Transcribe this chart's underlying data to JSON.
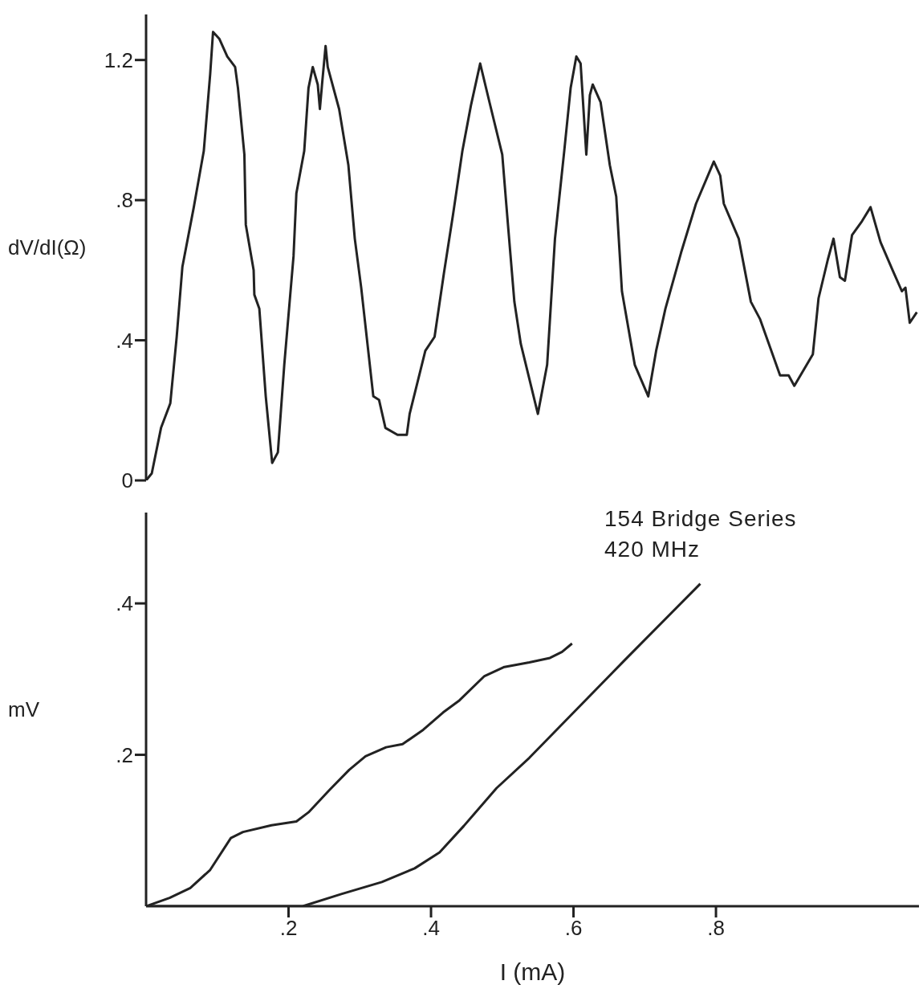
{
  "chart_data": [
    {
      "type": "line",
      "ylabel": "dV/dI(Ω)",
      "xlim": [
        0,
        1.085
      ],
      "ylim": [
        0,
        1.33
      ],
      "yticks": [
        0,
        {
          "value": 0.4,
          "label": ".4"
        },
        {
          "value": 0.8,
          "label": ".8"
        },
        {
          "value": 1.2,
          "label": "1.2"
        }
      ],
      "tick_labels": "y",
      "grid": false,
      "legend": false,
      "marker": "none",
      "line_style": "solid",
      "series": [
        {
          "color": "#222222",
          "x": [
            0,
            0.008,
            0.021,
            0.034,
            0.043,
            0.051,
            0.067,
            0.081,
            0.09,
            0.094,
            0.103,
            0.114,
            0.125,
            0.129,
            0.138,
            0.14,
            0.151,
            0.152,
            0.159,
            0.168,
            0.177,
            0.185,
            0.194,
            0.207,
            0.211,
            0.222,
            0.228,
            0.234,
            0.241,
            0.244,
            0.247,
            0.252,
            0.255,
            0.271,
            0.284,
            0.293,
            0.302,
            0.319,
            0.327,
            0.336,
            0.353,
            0.366,
            0.37,
            0.392,
            0.405,
            0.418,
            0.431,
            0.444,
            0.456,
            0.469,
            0.482,
            0.5,
            0.508,
            0.517,
            0.526,
            0.55,
            0.563,
            0.574,
            0.587,
            0.596,
            0.604,
            0.61,
            0.618,
            0.623,
            0.627,
            0.638,
            0.651,
            0.66,
            0.668,
            0.686,
            0.705,
            0.716,
            0.729,
            0.751,
            0.772,
            0.797,
            0.806,
            0.811,
            0.832,
            0.849,
            0.862,
            0.89,
            0.902,
            0.91,
            0.936,
            0.944,
            0.957,
            0.965,
            0.974,
            0.981,
            0.991,
            1.005,
            1.017,
            1.031,
            1.048,
            1.061,
            1.066,
            1.072,
            1.082
          ],
          "values": [
            0,
            0.02,
            0.15,
            0.22,
            0.41,
            0.61,
            0.78,
            0.94,
            1.16,
            1.28,
            1.26,
            1.21,
            1.18,
            1.12,
            0.93,
            0.73,
            0.6,
            0.53,
            0.49,
            0.24,
            0.05,
            0.08,
            0.33,
            0.64,
            0.82,
            0.94,
            1.12,
            1.18,
            1.13,
            1.06,
            1.13,
            1.24,
            1.18,
            1.06,
            0.9,
            0.69,
            0.55,
            0.24,
            0.23,
            0.15,
            0.13,
            0.13,
            0.19,
            0.37,
            0.41,
            0.59,
            0.76,
            0.94,
            1.07,
            1.19,
            1.08,
            0.93,
            0.73,
            0.51,
            0.39,
            0.19,
            0.33,
            0.69,
            0.94,
            1.12,
            1.21,
            1.19,
            0.93,
            1.1,
            1.13,
            1.08,
            0.9,
            0.81,
            0.54,
            0.33,
            0.24,
            0.37,
            0.49,
            0.65,
            0.79,
            0.91,
            0.87,
            0.79,
            0.69,
            0.51,
            0.46,
            0.3,
            0.3,
            0.27,
            0.36,
            0.52,
            0.63,
            0.69,
            0.58,
            0.57,
            0.7,
            0.74,
            0.78,
            0.68,
            0.6,
            0.54,
            0.55,
            0.45,
            0.48
          ]
        }
      ]
    },
    {
      "type": "line",
      "ylabel": "mV",
      "xlabel": "I (mA)",
      "xlim": [
        0,
        1.085
      ],
      "ylim": [
        0,
        0.52
      ],
      "xticks": [
        {
          "value": 0.2,
          "label": ".2"
        },
        {
          "value": 0.4,
          "label": ".4"
        },
        {
          "value": 0.6,
          "label": ".6"
        },
        {
          "value": 0.8,
          "label": ".8"
        }
      ],
      "yticks": [
        {
          "value": 0.2,
          "label": ".2"
        },
        {
          "value": 0.4,
          "label": ".4"
        }
      ],
      "grid": false,
      "legend": false,
      "marker": "none",
      "line_style": "solid",
      "annotations": [
        "154 Bridge Series",
        "420 MHz"
      ],
      "series": [
        {
          "color": "#222222",
          "x": [
            0,
            0.033,
            0.062,
            0.09,
            0.119,
            0.136,
            0.176,
            0.211,
            0.228,
            0.257,
            0.285,
            0.308,
            0.337,
            0.36,
            0.389,
            0.417,
            0.44,
            0.475,
            0.503,
            0.538,
            0.567,
            0.584,
            0.598
          ],
          "values": [
            0,
            0.011,
            0.024,
            0.048,
            0.09,
            0.098,
            0.107,
            0.112,
            0.124,
            0.153,
            0.18,
            0.198,
            0.21,
            0.214,
            0.233,
            0.256,
            0.272,
            0.304,
            0.316,
            0.322,
            0.328,
            0.336,
            0.347
          ]
        },
        {
          "color": "#222222",
          "x": [
            0,
            0.22,
            0.274,
            0.331,
            0.377,
            0.412,
            0.446,
            0.492,
            0.538,
            0.595,
            0.675,
            0.778
          ],
          "values": [
            0,
            0,
            0.016,
            0.032,
            0.05,
            0.071,
            0.106,
            0.156,
            0.196,
            0.251,
            0.328,
            0.426
          ]
        }
      ]
    }
  ]
}
